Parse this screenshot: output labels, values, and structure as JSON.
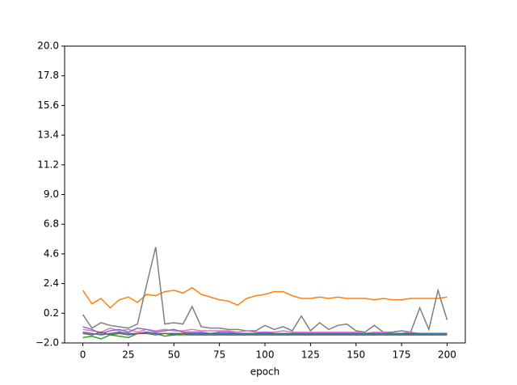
{
  "chart_data": {
    "type": "line",
    "x_label": "epoch",
    "x": [
      0,
      5,
      10,
      15,
      20,
      25,
      30,
      35,
      40,
      45,
      50,
      55,
      60,
      65,
      70,
      75,
      80,
      85,
      90,
      95,
      100,
      105,
      110,
      115,
      120,
      125,
      130,
      135,
      140,
      145,
      150,
      155,
      160,
      165,
      170,
      175,
      180,
      185,
      190,
      195,
      200
    ],
    "series": [
      {
        "color": "#ff7f0e",
        "values": [
          1.9,
          0.9,
          1.3,
          0.6,
          1.2,
          1.4,
          1.0,
          1.6,
          1.5,
          1.8,
          1.9,
          1.7,
          2.1,
          1.6,
          1.4,
          1.2,
          1.1,
          0.8,
          1.3,
          1.5,
          1.6,
          1.8,
          1.8,
          1.5,
          1.3,
          1.3,
          1.4,
          1.3,
          1.4,
          1.3,
          1.3,
          1.3,
          1.2,
          1.3,
          1.2,
          1.2,
          1.3,
          1.3,
          1.3,
          1.3,
          1.4
        ]
      },
      {
        "color": "#7f7f7f",
        "values": [
          0.1,
          -0.9,
          -0.5,
          -0.7,
          -0.8,
          -0.9,
          -0.6,
          2.3,
          5.1,
          -0.6,
          -0.5,
          -0.6,
          0.7,
          -0.8,
          -0.9,
          -0.9,
          -1.0,
          -1.0,
          -1.1,
          -1.1,
          -0.7,
          -1.0,
          -0.8,
          -1.1,
          0.0,
          -1.1,
          -0.5,
          -1.0,
          -0.7,
          -0.6,
          -1.1,
          -1.2,
          -0.7,
          -1.2,
          -1.2,
          -1.1,
          -1.2,
          0.6,
          -1.0,
          1.9,
          -0.3
        ]
      },
      {
        "color": "#e377c2",
        "values": [
          -1.0,
          -1.1,
          -1.2,
          -0.9,
          -1.1,
          -1.0,
          -1.2,
          -1.0,
          -1.1,
          -1.0,
          -1.1,
          -1.1,
          -1.0,
          -1.1,
          -1.1,
          -1.1,
          -1.1,
          -1.2,
          -1.1,
          -1.2,
          -1.2,
          -1.2,
          -1.1,
          -1.2,
          -1.2,
          -1.2,
          -1.2,
          -1.2,
          -1.2,
          -1.2,
          -1.2,
          -1.3,
          -1.2,
          -1.2,
          -1.3,
          -1.3,
          -1.2,
          -1.3,
          -1.3,
          -1.3,
          -1.3
        ]
      },
      {
        "color": "#9467bd",
        "values": [
          -0.8,
          -1.0,
          -1.3,
          -1.1,
          -1.0,
          -1.2,
          -0.9,
          -1.0,
          -1.2,
          -1.1,
          -1.0,
          -1.2,
          -1.2,
          -1.2,
          -1.3,
          -1.2,
          -1.2,
          -1.3,
          -1.3,
          -1.3,
          -1.2,
          -1.3,
          -1.3,
          -1.3,
          -1.3,
          -1.3,
          -1.3,
          -1.3,
          -1.3,
          -1.3,
          -1.3,
          -1.3,
          -1.3,
          -1.3,
          -1.3,
          -1.3,
          -1.3,
          -1.3,
          -1.3,
          -1.3,
          -1.3
        ]
      },
      {
        "color": "#2ca02c",
        "values": [
          -1.6,
          -1.5,
          -1.7,
          -1.4,
          -1.5,
          -1.6,
          -1.3,
          -1.2,
          -1.3,
          -1.5,
          -1.4,
          -1.4,
          -1.4,
          -1.4,
          -1.4,
          -1.4,
          -1.4,
          -1.4,
          -1.4,
          -1.4,
          -1.4,
          -1.4,
          -1.4,
          -1.4,
          -1.4,
          -1.4,
          -1.4,
          -1.4,
          -1.4,
          -1.4,
          -1.4,
          -1.4,
          -1.4,
          -1.4,
          -1.4,
          -1.4,
          -1.4,
          -1.4,
          -1.4,
          -1.4,
          -1.4
        ]
      },
      {
        "color": "#1f77b4",
        "values": [
          -1.2,
          -1.3,
          -1.4,
          -1.3,
          -1.2,
          -1.3,
          -1.3,
          -1.2,
          -1.3,
          -1.3,
          -1.3,
          -1.3,
          -1.3,
          -1.3,
          -1.3,
          -1.3,
          -1.3,
          -1.3,
          -1.3,
          -1.3,
          -1.3,
          -1.3,
          -1.3,
          -1.3,
          -1.3,
          -1.3,
          -1.3,
          -1.3,
          -1.3,
          -1.3,
          -1.3,
          -1.3,
          -1.3,
          -1.3,
          -1.3,
          -1.3,
          -1.3,
          -1.3,
          -1.3,
          -1.3,
          -1.3
        ]
      },
      {
        "color": "#8c564b",
        "values": [
          -1.3,
          -1.4,
          -1.2,
          -1.4,
          -1.3,
          -1.4,
          -1.3,
          -1.3,
          -1.4,
          -1.3,
          -1.4,
          -1.3,
          -1.4,
          -1.4,
          -1.4,
          -1.4,
          -1.4,
          -1.4,
          -1.4,
          -1.4,
          -1.4,
          -1.4,
          -1.4,
          -1.4,
          -1.4,
          -1.4,
          -1.4,
          -1.4,
          -1.4,
          -1.4,
          -1.4,
          -1.4,
          -1.4,
          -1.4,
          -1.4,
          -1.4,
          -1.4,
          -1.4,
          -1.4,
          -1.4,
          -1.4
        ]
      }
    ],
    "xlim": [
      -10,
      210
    ],
    "xticks": [
      0,
      25,
      50,
      75,
      100,
      125,
      150,
      175,
      200
    ],
    "ylim": [
      -2,
      20
    ],
    "yticks": [
      {
        "value": -2,
        "label": "−2.0"
      },
      0.2,
      2.4,
      4.6,
      6.8,
      {
        "value": 9,
        "label": "9.0"
      },
      11.2,
      13.4,
      15.6,
      17.8,
      {
        "value": 20,
        "label": "20.0"
      }
    ]
  }
}
